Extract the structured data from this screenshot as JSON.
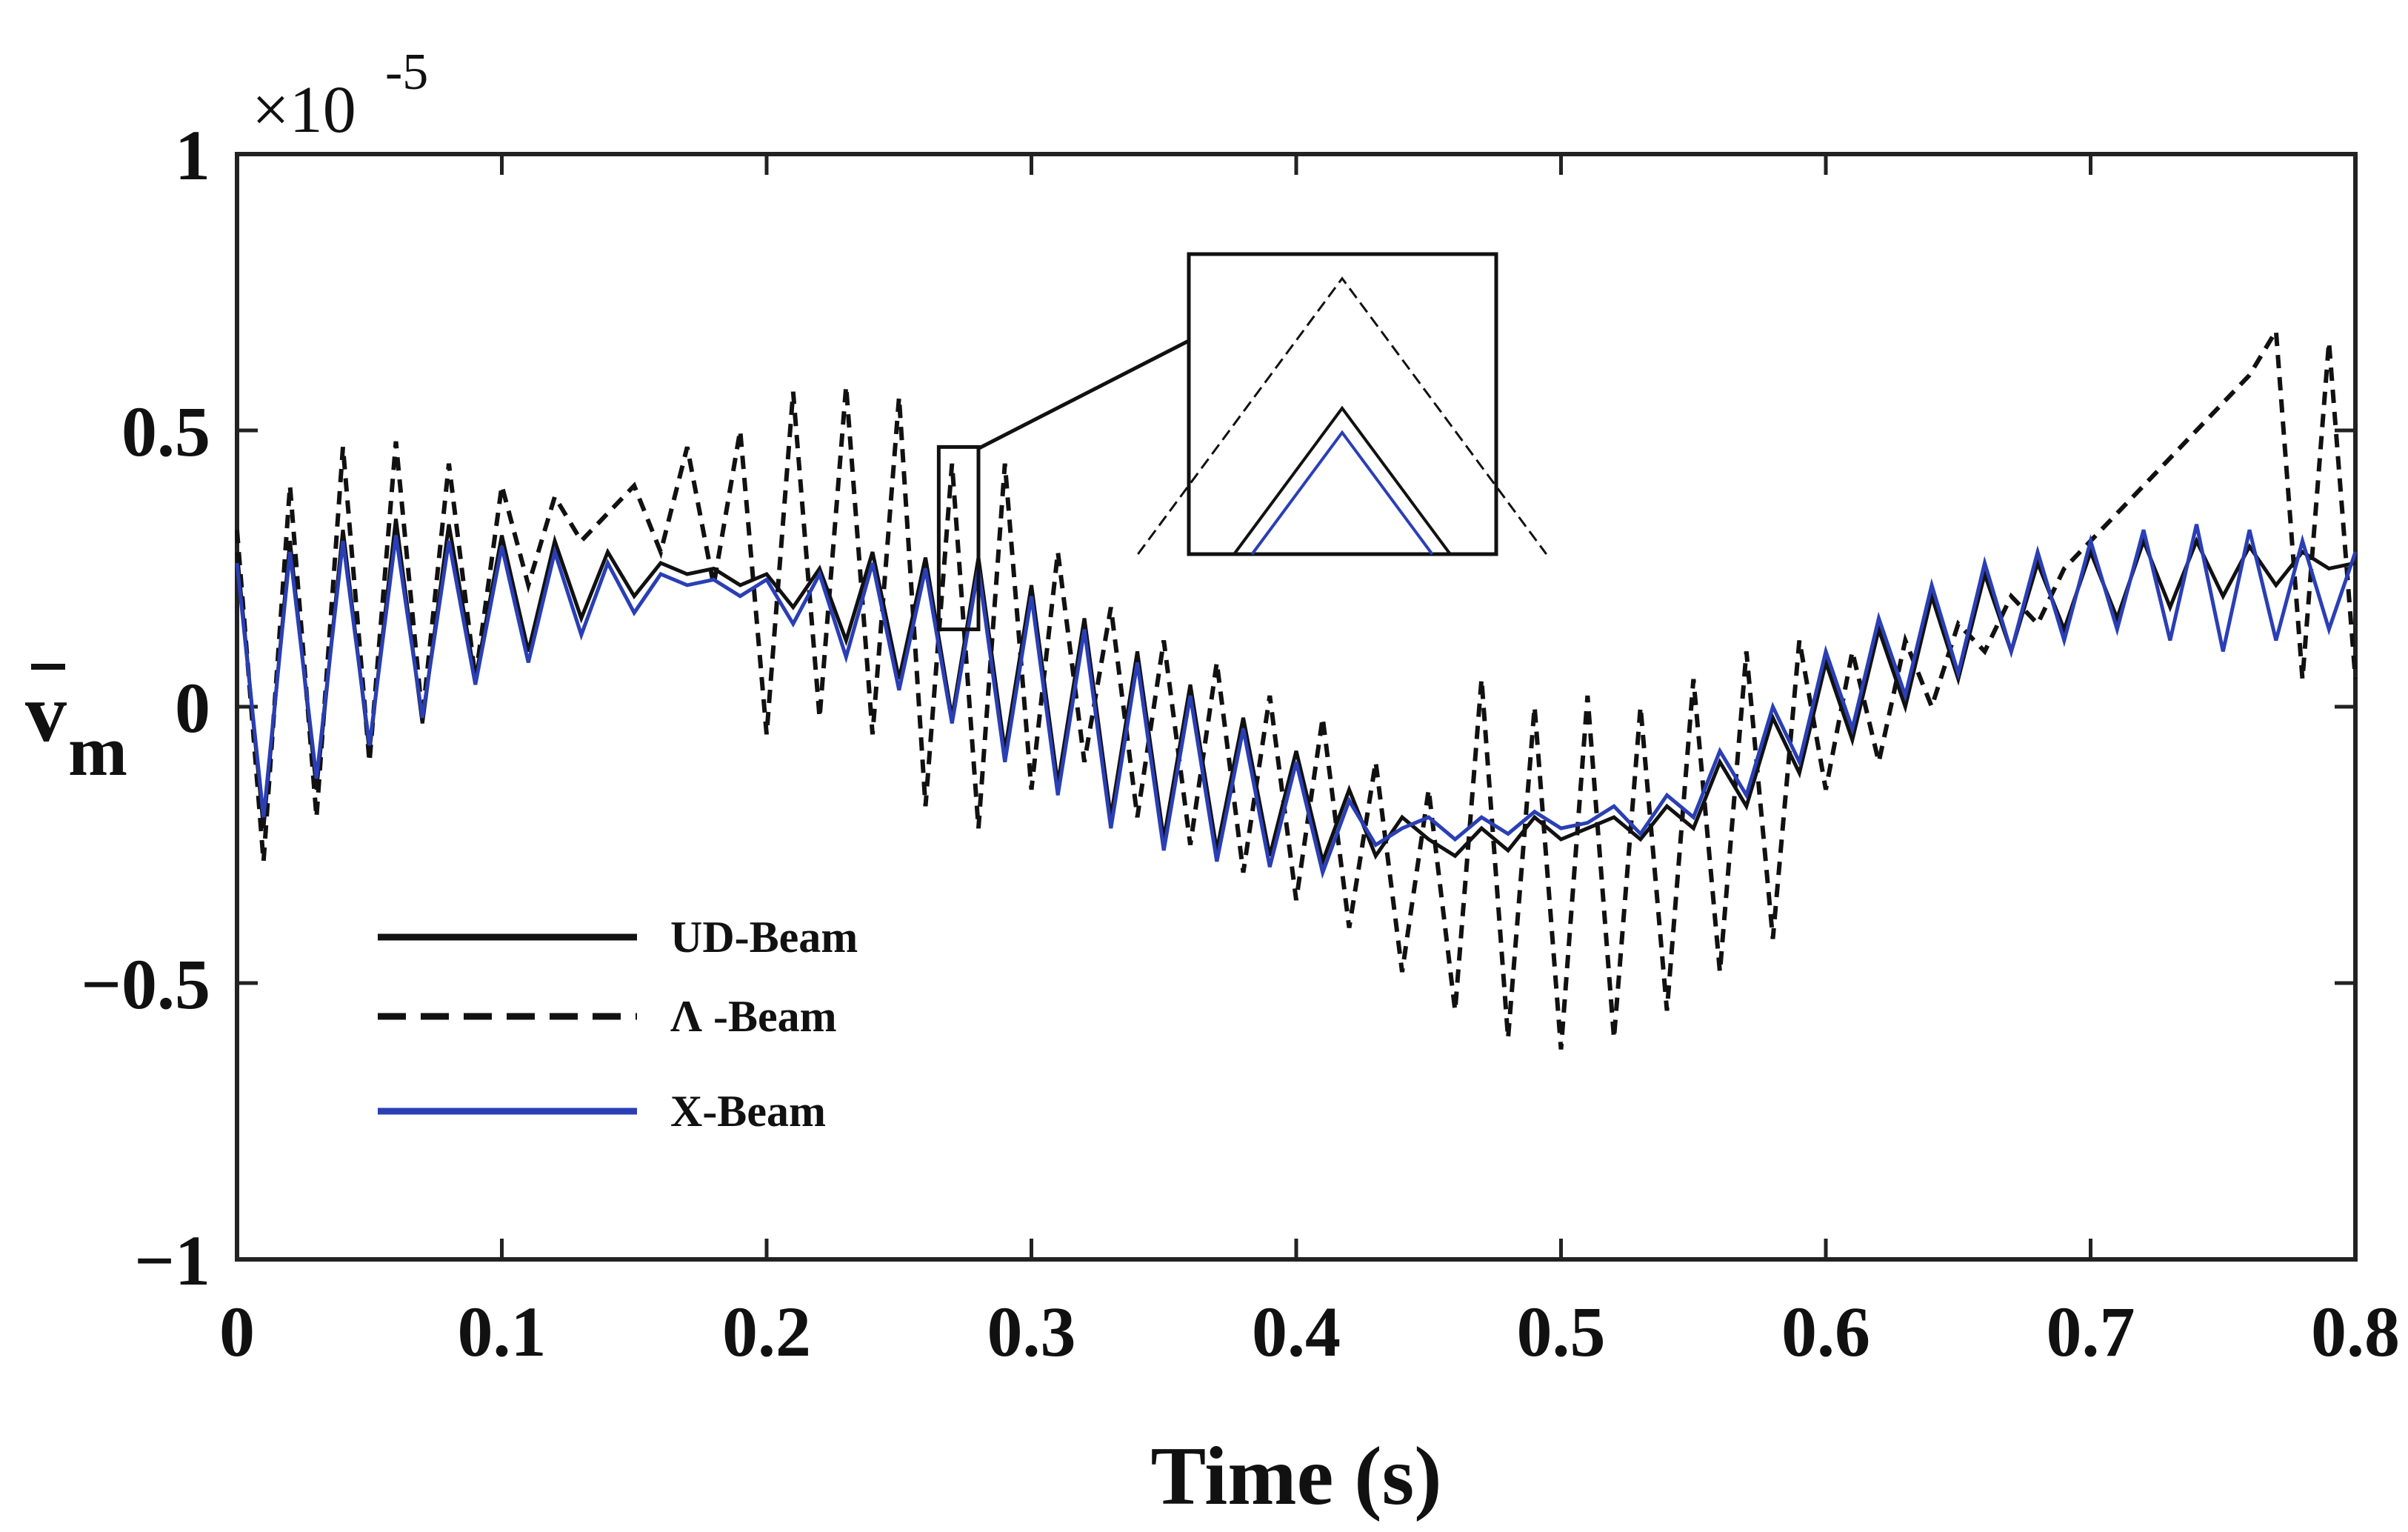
{
  "chart_data": {
    "type": "line",
    "title": "",
    "xlabel": "Time (s)",
    "ylabel_main": "v",
    "ylabel_sub": "m",
    "y_exponent_base": "×10",
    "y_exponent_power": "-5",
    "xlim": [
      0,
      0.8
    ],
    "ylim": [
      -1,
      1
    ],
    "x_ticks": [
      0,
      0.1,
      0.2,
      0.3,
      0.4,
      0.5,
      0.6,
      0.7,
      0.8
    ],
    "x_tick_labels": [
      "0",
      "0.1",
      "0.2",
      "0.3",
      "0.4",
      "0.5",
      "0.6",
      "0.7",
      "0.8"
    ],
    "y_ticks": [
      -1,
      -0.5,
      0,
      0.5,
      1
    ],
    "y_tick_labels": [
      "−1",
      "−0.5",
      "0",
      "0.5",
      "1"
    ],
    "grid": false,
    "legend_position": "lower-left",
    "series": [
      {
        "name": "UD-Beam",
        "color": "#111111",
        "dash": "solid",
        "x": [
          0,
          0.01,
          0.02,
          0.03,
          0.04,
          0.05,
          0.06,
          0.07,
          0.08,
          0.09,
          0.1,
          0.11,
          0.12,
          0.13,
          0.14,
          0.15,
          0.16,
          0.17,
          0.18,
          0.19,
          0.2,
          0.21,
          0.22,
          0.23,
          0.24,
          0.25,
          0.26,
          0.27,
          0.28,
          0.29,
          0.3,
          0.31,
          0.32,
          0.33,
          0.34,
          0.35,
          0.36,
          0.37,
          0.38,
          0.39,
          0.4,
          0.41,
          0.42,
          0.43,
          0.44,
          0.45,
          0.46,
          0.47,
          0.48,
          0.49,
          0.5,
          0.51,
          0.52,
          0.53,
          0.54,
          0.55,
          0.56,
          0.57,
          0.58,
          0.59,
          0.6,
          0.61,
          0.62,
          0.63,
          0.64,
          0.65,
          0.66,
          0.67,
          0.68,
          0.69,
          0.7,
          0.71,
          0.72,
          0.73,
          0.74,
          0.75,
          0.76,
          0.77,
          0.78,
          0.79,
          0.8
        ],
        "values": [
          0.28,
          -0.22,
          0.3,
          -0.15,
          0.32,
          -0.08,
          0.34,
          -0.03,
          0.33,
          0.05,
          0.31,
          0.1,
          0.3,
          0.16,
          0.28,
          0.2,
          0.26,
          0.24,
          0.25,
          0.22,
          0.24,
          0.18,
          0.25,
          0.12,
          0.28,
          0.05,
          0.27,
          -0.02,
          0.27,
          -0.08,
          0.22,
          -0.14,
          0.16,
          -0.2,
          0.1,
          -0.24,
          0.04,
          -0.26,
          -0.02,
          -0.27,
          -0.08,
          -0.28,
          -0.15,
          -0.27,
          -0.2,
          -0.24,
          -0.27,
          -0.22,
          -0.26,
          -0.2,
          -0.24,
          -0.22,
          -0.2,
          -0.24,
          -0.18,
          -0.22,
          -0.1,
          -0.18,
          -0.02,
          -0.12,
          0.08,
          -0.06,
          0.14,
          0.0,
          0.2,
          0.05,
          0.24,
          0.1,
          0.26,
          0.14,
          0.28,
          0.16,
          0.3,
          0.18,
          0.3,
          0.2,
          0.29,
          0.22,
          0.28,
          0.25,
          0.26
        ]
      },
      {
        "name": "Λ -Beam",
        "color": "#111111",
        "dash": "dashed",
        "x": [
          0,
          0.01,
          0.02,
          0.03,
          0.04,
          0.05,
          0.06,
          0.07,
          0.08,
          0.09,
          0.1,
          0.11,
          0.12,
          0.13,
          0.14,
          0.15,
          0.16,
          0.17,
          0.18,
          0.19,
          0.2,
          0.21,
          0.22,
          0.23,
          0.24,
          0.25,
          0.26,
          0.27,
          0.28,
          0.29,
          0.3,
          0.31,
          0.32,
          0.33,
          0.34,
          0.35,
          0.36,
          0.37,
          0.38,
          0.39,
          0.4,
          0.41,
          0.42,
          0.43,
          0.44,
          0.45,
          0.46,
          0.47,
          0.48,
          0.49,
          0.5,
          0.51,
          0.52,
          0.53,
          0.54,
          0.55,
          0.56,
          0.57,
          0.58,
          0.59,
          0.6,
          0.61,
          0.62,
          0.63,
          0.64,
          0.65,
          0.66,
          0.67,
          0.68,
          0.69,
          0.7,
          0.71,
          0.72,
          0.73,
          0.74,
          0.75,
          0.76,
          0.77,
          0.78,
          0.79,
          0.8
        ],
        "values": [
          0.32,
          -0.28,
          0.4,
          -0.2,
          0.47,
          -0.1,
          0.48,
          -0.02,
          0.44,
          0.05,
          0.4,
          0.22,
          0.38,
          0.3,
          0.35,
          0.4,
          0.28,
          0.47,
          0.22,
          0.5,
          -0.05,
          0.57,
          -0.02,
          0.58,
          -0.05,
          0.56,
          -0.18,
          0.44,
          -0.22,
          0.44,
          -0.15,
          0.28,
          -0.1,
          0.18,
          -0.2,
          0.12,
          -0.25,
          0.08,
          -0.3,
          0.02,
          -0.35,
          -0.02,
          -0.4,
          -0.1,
          -0.48,
          -0.15,
          -0.55,
          0.05,
          -0.6,
          0.0,
          -0.62,
          0.02,
          -0.6,
          0.0,
          -0.55,
          0.05,
          -0.48,
          0.1,
          -0.42,
          0.12,
          -0.15,
          0.1,
          -0.1,
          0.12,
          0.0,
          0.15,
          0.1,
          0.2,
          0.15,
          0.25,
          0.3,
          0.35,
          0.4,
          0.45,
          0.5,
          0.55,
          0.6,
          0.68,
          0.05,
          0.66,
          0.05
        ]
      },
      {
        "name": "X-Beam",
        "color": "#2a3fb5",
        "dash": "solid",
        "x": [
          0,
          0.01,
          0.02,
          0.03,
          0.04,
          0.05,
          0.06,
          0.07,
          0.08,
          0.09,
          0.1,
          0.11,
          0.12,
          0.13,
          0.14,
          0.15,
          0.16,
          0.17,
          0.18,
          0.19,
          0.2,
          0.21,
          0.22,
          0.23,
          0.24,
          0.25,
          0.26,
          0.27,
          0.28,
          0.29,
          0.3,
          0.31,
          0.32,
          0.33,
          0.34,
          0.35,
          0.36,
          0.37,
          0.38,
          0.39,
          0.4,
          0.41,
          0.42,
          0.43,
          0.44,
          0.45,
          0.46,
          0.47,
          0.48,
          0.49,
          0.5,
          0.51,
          0.52,
          0.53,
          0.54,
          0.55,
          0.56,
          0.57,
          0.58,
          0.59,
          0.6,
          0.61,
          0.62,
          0.63,
          0.64,
          0.65,
          0.66,
          0.67,
          0.68,
          0.69,
          0.7,
          0.71,
          0.72,
          0.73,
          0.74,
          0.75,
          0.76,
          0.77,
          0.78,
          0.79,
          0.8
        ],
        "values": [
          0.26,
          -0.2,
          0.28,
          -0.13,
          0.3,
          -0.07,
          0.31,
          -0.02,
          0.3,
          0.04,
          0.29,
          0.08,
          0.28,
          0.13,
          0.26,
          0.17,
          0.24,
          0.22,
          0.23,
          0.2,
          0.23,
          0.15,
          0.24,
          0.09,
          0.26,
          0.03,
          0.25,
          -0.03,
          0.25,
          -0.1,
          0.2,
          -0.16,
          0.14,
          -0.22,
          0.08,
          -0.26,
          0.02,
          -0.28,
          -0.04,
          -0.29,
          -0.1,
          -0.3,
          -0.17,
          -0.25,
          -0.22,
          -0.2,
          -0.24,
          -0.2,
          -0.23,
          -0.19,
          -0.22,
          -0.21,
          -0.18,
          -0.23,
          -0.16,
          -0.2,
          -0.08,
          -0.16,
          0.0,
          -0.1,
          0.1,
          -0.04,
          0.16,
          0.02,
          0.22,
          0.06,
          0.26,
          0.1,
          0.28,
          0.12,
          0.3,
          0.14,
          0.32,
          0.12,
          0.33,
          0.1,
          0.32,
          0.12,
          0.3,
          0.14,
          0.28
        ]
      }
    ],
    "inset": {
      "description_series_peaks": [
        {
          "name": "Λ -Beam",
          "value": 0.44
        },
        {
          "name": "UD-Beam",
          "value": 0.28
        },
        {
          "name": "X-Beam",
          "value": 0.25
        }
      ],
      "source_x_range": [
        0.265,
        0.28
      ],
      "source_y_range": [
        0.14,
        0.47
      ]
    }
  }
}
